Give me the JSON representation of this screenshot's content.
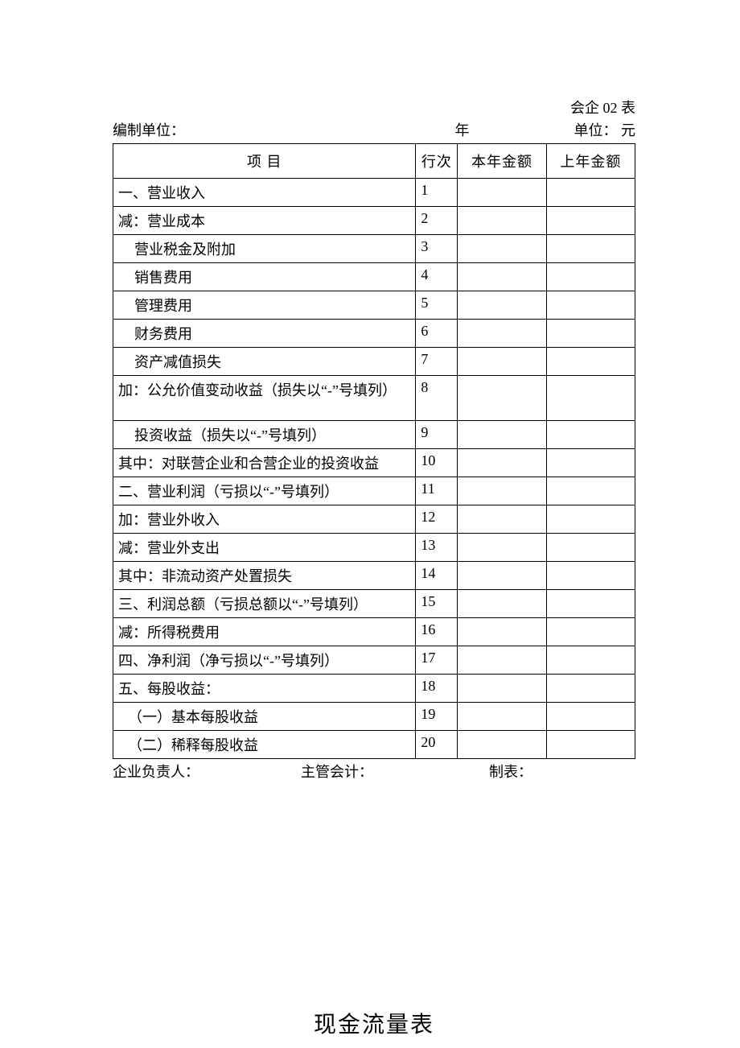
{
  "form_code": "会企 02 表",
  "header": {
    "org_label": "编制单位：",
    "year_label": "年",
    "unit_label": "单位： 元"
  },
  "columns": {
    "item": "项 目",
    "line": "行次",
    "this_year": "本年金额",
    "last_year": "上年金额"
  },
  "rows": [
    {
      "item": "一、营业收入",
      "line": "1",
      "cls": ""
    },
    {
      "item": "减：营业成本",
      "line": "2",
      "cls": ""
    },
    {
      "item": "营业税金及附加",
      "line": "3",
      "cls": "indent-1"
    },
    {
      "item": "销售费用",
      "line": "4",
      "cls": "indent-1"
    },
    {
      "item": "管理费用",
      "line": "5",
      "cls": "indent-1"
    },
    {
      "item": "财务费用",
      "line": "6",
      "cls": "indent-1"
    },
    {
      "item": "资产减值损失",
      "line": "7",
      "cls": "indent-1"
    },
    {
      "item": "加：公允价值变动收益（损失以“-”号填列）",
      "line": "8",
      "cls": "",
      "tall": true
    },
    {
      "item": "投资收益（损失以“-”号填列）",
      "line": "9",
      "cls": "indent-1"
    },
    {
      "item": "其中：对联营企业和合营企业的投资收益",
      "line": "10",
      "cls": ""
    },
    {
      "item": "二、营业利润（亏损以“-”号填列）",
      "line": "11",
      "cls": ""
    },
    {
      "item": "加：营业外收入",
      "line": "12",
      "cls": ""
    },
    {
      "item": "减：营业外支出",
      "line": "13",
      "cls": ""
    },
    {
      "item": "其中：非流动资产处置损失",
      "line": "14",
      "cls": ""
    },
    {
      "item": "三、利润总额（亏损总额以“-”号填列）",
      "line": "15",
      "cls": ""
    },
    {
      "item": "减：所得税费用",
      "line": "16",
      "cls": ""
    },
    {
      "item": "四、净利润（净亏损以“-”号填列）",
      "line": "17",
      "cls": ""
    },
    {
      "item": "五、每股收益：",
      "line": "18",
      "cls": ""
    },
    {
      "item": "（一）基本每股收益",
      "line": "19",
      "cls": "indent-sp"
    },
    {
      "item": "（二）稀释每股收益",
      "line": "20",
      "cls": "indent-sp"
    }
  ],
  "footer": {
    "responsible": "企业负责人：",
    "accountant": "主管会计：",
    "preparer": "制表："
  },
  "next_title": "现金流量表"
}
